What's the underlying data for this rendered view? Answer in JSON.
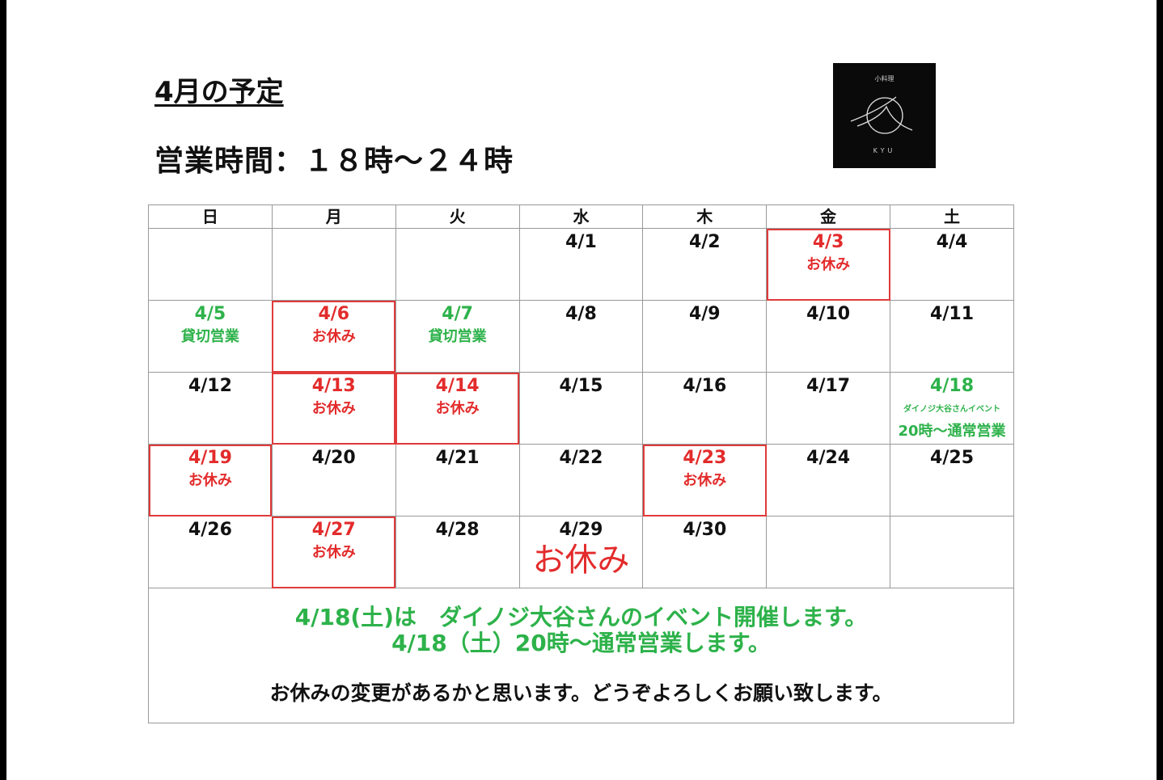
{
  "title": "4月の予定",
  "hours": "営業時間：１８時〜２４時",
  "logo": {
    "top_text": "小料理",
    "bottom_text": "KYU"
  },
  "colors": {
    "red": "#e32b2b",
    "green": "#2db24a",
    "black": "#111111"
  },
  "weekdays": [
    "日",
    "月",
    "火",
    "水",
    "木",
    "金",
    "土"
  ],
  "weeks": [
    [
      {
        "date": ""
      },
      {
        "date": ""
      },
      {
        "date": ""
      },
      {
        "date": "4/1",
        "color": "black"
      },
      {
        "date": "4/2",
        "color": "black"
      },
      {
        "date": "4/3",
        "note": "お休み",
        "color": "red",
        "boxed": true
      },
      {
        "date": "4/4",
        "color": "black"
      }
    ],
    [
      {
        "date": "4/5",
        "note": "貸切営業",
        "color": "green"
      },
      {
        "date": "4/6",
        "note": "お休み",
        "color": "red",
        "boxed": true
      },
      {
        "date": "4/7",
        "note": "貸切営業",
        "color": "green"
      },
      {
        "date": "4/8",
        "color": "black"
      },
      {
        "date": "4/9",
        "color": "black"
      },
      {
        "date": "4/10",
        "color": "black"
      },
      {
        "date": "4/11",
        "color": "black"
      }
    ],
    [
      {
        "date": "4/12",
        "color": "black"
      },
      {
        "date": "4/13",
        "note": "お休み",
        "color": "red",
        "boxed": true
      },
      {
        "date": "4/14",
        "note": "お休み",
        "color": "red",
        "boxed": true
      },
      {
        "date": "4/15",
        "color": "black"
      },
      {
        "date": "4/16",
        "color": "black"
      },
      {
        "date": "4/17",
        "color": "black"
      },
      {
        "date": "4/18",
        "small_note": "ダイノジ大谷さんイベント",
        "note": "20時〜通常営業",
        "color": "green"
      }
    ],
    [
      {
        "date": "4/19",
        "note": "お休み",
        "color": "red",
        "boxed": true
      },
      {
        "date": "4/20",
        "color": "black"
      },
      {
        "date": "4/21",
        "color": "black"
      },
      {
        "date": "4/22",
        "color": "black"
      },
      {
        "date": "4/23",
        "note": "お休み",
        "color": "red",
        "boxed": true
      },
      {
        "date": "4/24",
        "color": "black"
      },
      {
        "date": "4/25",
        "color": "black"
      }
    ],
    [
      {
        "date": "4/26",
        "color": "black"
      },
      {
        "date": "4/27",
        "note": "お休み",
        "color": "red",
        "boxed": true
      },
      {
        "date": "4/28",
        "color": "black"
      },
      {
        "date": "4/29",
        "color": "black",
        "big_note": "お休み"
      },
      {
        "date": "4/30",
        "color": "black"
      },
      {
        "date": ""
      },
      {
        "date": ""
      }
    ]
  ],
  "footer": {
    "line1": "4/18(土)は　ダイノジ大谷さんのイベント開催します。",
    "line2": "4/18（土）20時〜通常営業します。",
    "line3": "お休みの変更があるかと思います。どうぞよろしくお願い致します。"
  }
}
